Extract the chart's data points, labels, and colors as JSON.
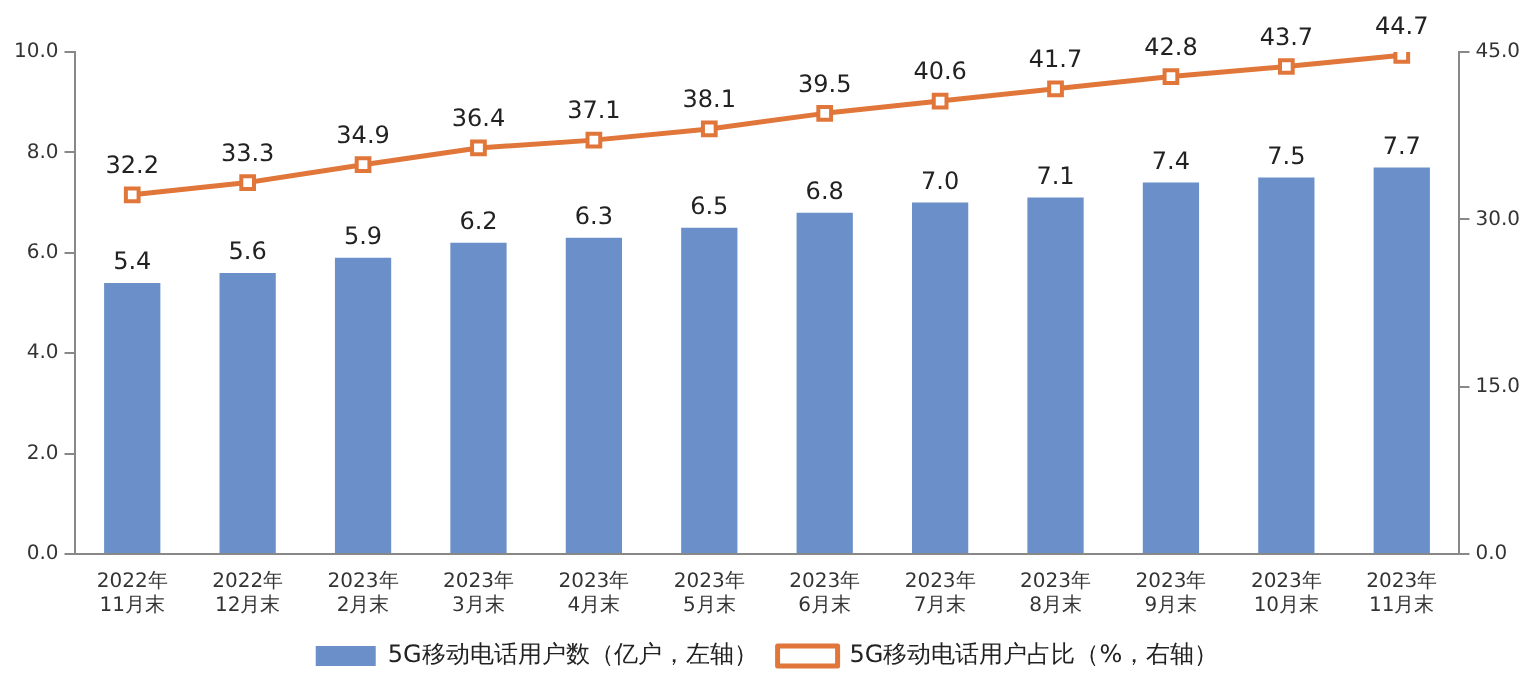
{
  "chart_data": {
    "type": "bar",
    "categories": [
      "2022年11月末",
      "2022年12月末",
      "2023年2月末",
      "2023年3月末",
      "2023年4月末",
      "2023年5月末",
      "2023年6月末",
      "2023年7月末",
      "2023年8月末",
      "2023年9月末",
      "2023年10月末",
      "2023年11月末"
    ],
    "series": [
      {
        "name": "5G移动电话用户数（亿户，左轴）",
        "color": "#6b8fc9",
        "values": [
          5.4,
          5.6,
          5.9,
          6.2,
          6.3,
          6.5,
          6.8,
          7.0,
          7.1,
          7.4,
          7.5,
          7.7
        ],
        "value_labels": [
          "5.4",
          "5.6",
          "5.9",
          "6.2",
          "6.3",
          "6.5",
          "6.8",
          "7.0",
          "7.1",
          "7.4",
          "7.5",
          "7.7"
        ]
      },
      {
        "name": "5G移动电话用户占比（%，右轴）",
        "type": "line",
        "axis": "y2",
        "color": "#e0763a",
        "marker": "square",
        "values": [
          32.2,
          33.3,
          34.9,
          36.4,
          37.1,
          38.1,
          39.5,
          40.6,
          41.7,
          42.8,
          43.7,
          44.7
        ]
      }
    ],
    "ylim": [
      0,
      10
    ],
    "yticks": [
      {
        "value": 0,
        "label": "0.0"
      },
      {
        "value": 2,
        "label": "2.0"
      },
      {
        "value": 4,
        "label": "4.0"
      },
      {
        "value": 6,
        "label": "6.0"
      },
      {
        "value": 8,
        "label": "8.0"
      },
      {
        "value": 10,
        "label": "10.0"
      }
    ],
    "y2lim": [
      0,
      45
    ],
    "y2ticks": [
      {
        "value": 0,
        "label": "0.0"
      },
      {
        "value": 15,
        "label": "15.0"
      },
      {
        "value": 30,
        "label": "30.0"
      },
      {
        "value": 45,
        "label": "45.0"
      }
    ],
    "data_labels": true,
    "legend": "bottom",
    "grid": false
  }
}
